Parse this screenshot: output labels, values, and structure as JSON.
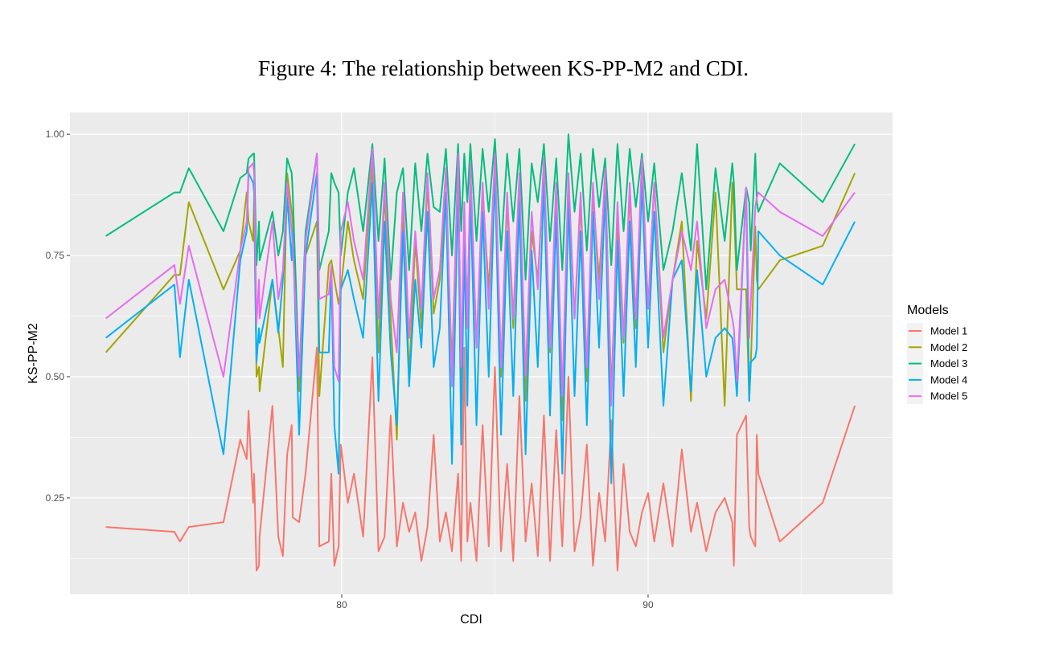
{
  "chart_data": {
    "type": "line",
    "title": "Figure 4: The relationship between KS-PP-M2 and CDI.",
    "xlabel": "CDI",
    "ylabel": "KS-PP-M2",
    "xlim": [
      71.13,
      97.98
    ],
    "ylim": [
      0.051,
      1.045
    ],
    "xticks": [
      80,
      90
    ],
    "xtick_labels": [
      "80",
      "90"
    ],
    "xminor": [
      75,
      85,
      95
    ],
    "yticks": [
      0.25,
      0.5,
      0.75,
      1.0
    ],
    "ytick_labels": [
      "0.25",
      "0.50",
      "0.75",
      "1.00"
    ],
    "yminor": [
      0.125,
      0.375,
      0.625,
      0.875
    ],
    "grid": true,
    "legend": {
      "title": "Models",
      "placement": "right"
    },
    "x": [
      72.3,
      74.54,
      74.72,
      75.01,
      76.14,
      76.69,
      76.9,
      76.96,
      77.11,
      77.14,
      77.22,
      77.3,
      77.32,
      77.74,
      77.93,
      78.08,
      78.22,
      78.37,
      78.4,
      78.61,
      78.82,
      79.19,
      79.27,
      79.58,
      79.66,
      79.76,
      79.9,
      79.97,
      80.2,
      80.4,
      80.7,
      81.0,
      81.2,
      81.4,
      81.6,
      81.8,
      82.0,
      82.2,
      82.4,
      82.6,
      82.8,
      83.0,
      83.2,
      83.4,
      83.6,
      83.8,
      83.9,
      84.0,
      84.1,
      84.2,
      84.4,
      84.6,
      84.8,
      85.0,
      85.2,
      85.4,
      85.6,
      85.8,
      86.0,
      86.2,
      86.4,
      86.6,
      86.8,
      87.0,
      87.2,
      87.4,
      87.6,
      87.8,
      88.0,
      88.2,
      88.4,
      88.6,
      88.8,
      89.0,
      89.2,
      89.4,
      89.6,
      89.8,
      90.0,
      90.2,
      90.5,
      90.8,
      91.1,
      91.4,
      91.6,
      91.9,
      92.2,
      92.5,
      92.75,
      92.8,
      92.9,
      93.2,
      93.3,
      93.35,
      93.5,
      93.55,
      93.6,
      94.3,
      95.7,
      96.75
    ],
    "series": [
      {
        "name": "Model 1",
        "color": "#F8766D",
        "values": [
          0.19,
          0.18,
          0.16,
          0.19,
          0.2,
          0.37,
          0.33,
          0.43,
          0.24,
          0.3,
          0.1,
          0.11,
          0.17,
          0.44,
          0.17,
          0.13,
          0.34,
          0.4,
          0.21,
          0.2,
          0.3,
          0.56,
          0.15,
          0.16,
          0.3,
          0.11,
          0.15,
          0.36,
          0.24,
          0.3,
          0.17,
          0.54,
          0.14,
          0.17,
          0.42,
          0.15,
          0.24,
          0.18,
          0.22,
          0.12,
          0.19,
          0.38,
          0.16,
          0.22,
          0.14,
          0.3,
          0.12,
          0.56,
          0.16,
          0.24,
          0.12,
          0.4,
          0.15,
          0.52,
          0.14,
          0.32,
          0.12,
          0.46,
          0.16,
          0.28,
          0.13,
          0.42,
          0.12,
          0.39,
          0.15,
          0.5,
          0.14,
          0.21,
          0.36,
          0.11,
          0.26,
          0.16,
          0.41,
          0.1,
          0.32,
          0.18,
          0.15,
          0.22,
          0.26,
          0.16,
          0.28,
          0.15,
          0.35,
          0.18,
          0.24,
          0.14,
          0.22,
          0.25,
          0.2,
          0.11,
          0.38,
          0.42,
          0.19,
          0.17,
          0.15,
          0.38,
          0.3,
          0.16,
          0.24,
          0.44
        ]
      },
      {
        "name": "Model 2",
        "color": "#A3A500",
        "values": [
          0.55,
          0.71,
          0.71,
          0.86,
          0.68,
          0.76,
          0.88,
          0.82,
          0.78,
          0.87,
          0.5,
          0.52,
          0.47,
          0.7,
          0.6,
          0.52,
          0.92,
          0.84,
          0.82,
          0.47,
          0.75,
          0.82,
          0.46,
          0.73,
          0.74,
          0.7,
          0.65,
          0.68,
          0.82,
          0.74,
          0.66,
          0.94,
          0.55,
          0.88,
          0.62,
          0.37,
          0.86,
          0.5,
          0.78,
          0.6,
          0.9,
          0.63,
          0.7,
          0.88,
          0.52,
          0.94,
          0.48,
          0.84,
          0.62,
          0.92,
          0.56,
          0.88,
          0.68,
          0.95,
          0.5,
          0.86,
          0.6,
          0.9,
          0.45,
          0.8,
          0.7,
          0.93,
          0.55,
          0.88,
          0.41,
          0.9,
          0.62,
          0.86,
          0.49,
          0.88,
          0.7,
          0.91,
          0.47,
          0.82,
          0.57,
          0.88,
          0.6,
          0.95,
          0.64,
          0.9,
          0.55,
          0.7,
          0.82,
          0.45,
          0.78,
          0.62,
          0.88,
          0.44,
          0.9,
          0.85,
          0.68,
          0.68,
          0.45,
          0.52,
          0.81,
          0.7,
          0.68,
          0.74,
          0.77,
          0.92
        ]
      },
      {
        "name": "Model 3",
        "color": "#00BF7D",
        "values": [
          0.79,
          0.88,
          0.88,
          0.93,
          0.8,
          0.91,
          0.92,
          0.95,
          0.96,
          0.96,
          0.73,
          0.82,
          0.74,
          0.84,
          0.75,
          0.8,
          0.95,
          0.92,
          0.88,
          0.5,
          0.8,
          0.96,
          0.72,
          0.8,
          0.92,
          0.9,
          0.88,
          0.75,
          0.88,
          0.93,
          0.8,
          0.98,
          0.78,
          0.95,
          0.7,
          0.88,
          0.93,
          0.72,
          0.94,
          0.8,
          0.96,
          0.85,
          0.84,
          0.97,
          0.75,
          0.98,
          0.8,
          0.96,
          0.86,
          0.98,
          0.78,
          0.97,
          0.84,
          0.99,
          0.76,
          0.96,
          0.82,
          0.97,
          0.7,
          0.94,
          0.86,
          0.98,
          0.78,
          0.95,
          0.72,
          1.0,
          0.84,
          0.96,
          0.76,
          0.97,
          0.85,
          0.95,
          0.73,
          0.98,
          0.8,
          0.97,
          0.85,
          0.96,
          0.82,
          0.94,
          0.72,
          0.8,
          0.92,
          0.76,
          0.98,
          0.68,
          0.93,
          0.78,
          0.94,
          0.9,
          0.72,
          0.89,
          0.86,
          0.76,
          0.96,
          0.86,
          0.84,
          0.94,
          0.86,
          0.98
        ]
      },
      {
        "name": "Model 4",
        "color": "#00B0F6",
        "values": [
          0.58,
          0.69,
          0.54,
          0.7,
          0.34,
          0.74,
          0.8,
          0.92,
          0.9,
          0.88,
          0.53,
          0.6,
          0.57,
          0.7,
          0.59,
          0.7,
          0.87,
          0.74,
          0.8,
          0.38,
          0.75,
          0.92,
          0.55,
          0.55,
          0.72,
          0.4,
          0.3,
          0.68,
          0.72,
          0.66,
          0.58,
          0.9,
          0.45,
          0.82,
          0.55,
          0.4,
          0.8,
          0.48,
          0.7,
          0.56,
          0.84,
          0.52,
          0.6,
          0.88,
          0.32,
          0.9,
          0.36,
          0.78,
          0.44,
          0.88,
          0.4,
          0.84,
          0.5,
          0.92,
          0.38,
          0.8,
          0.46,
          0.86,
          0.34,
          0.76,
          0.52,
          0.9,
          0.42,
          0.84,
          0.3,
          0.86,
          0.46,
          0.8,
          0.4,
          0.84,
          0.56,
          0.88,
          0.28,
          0.78,
          0.46,
          0.82,
          0.52,
          0.9,
          0.56,
          0.84,
          0.44,
          0.7,
          0.74,
          0.47,
          0.72,
          0.5,
          0.58,
          0.6,
          0.58,
          0.55,
          0.46,
          0.89,
          0.45,
          0.53,
          0.54,
          0.56,
          0.8,
          0.75,
          0.69,
          0.82
        ]
      },
      {
        "name": "Model 5",
        "color": "#E76BF3",
        "values": [
          0.62,
          0.73,
          0.65,
          0.77,
          0.5,
          0.76,
          0.82,
          0.93,
          0.94,
          0.92,
          0.61,
          0.7,
          0.62,
          0.82,
          0.66,
          0.72,
          0.9,
          0.8,
          0.77,
          0.5,
          0.78,
          0.96,
          0.66,
          0.67,
          0.73,
          0.52,
          0.49,
          0.8,
          0.86,
          0.78,
          0.7,
          0.97,
          0.62,
          0.9,
          0.66,
          0.55,
          0.88,
          0.58,
          0.8,
          0.64,
          0.92,
          0.66,
          0.72,
          0.93,
          0.48,
          0.96,
          0.52,
          0.86,
          0.6,
          0.94,
          0.56,
          0.9,
          0.64,
          0.96,
          0.52,
          0.88,
          0.62,
          0.92,
          0.5,
          0.84,
          0.68,
          0.95,
          0.56,
          0.9,
          0.46,
          0.92,
          0.62,
          0.88,
          0.52,
          0.9,
          0.66,
          0.93,
          0.44,
          0.86,
          0.58,
          0.9,
          0.62,
          0.95,
          0.64,
          0.9,
          0.58,
          0.7,
          0.8,
          0.72,
          0.82,
          0.6,
          0.68,
          0.7,
          0.62,
          0.6,
          0.49,
          0.89,
          0.58,
          0.65,
          0.85,
          0.87,
          0.88,
          0.84,
          0.79,
          0.88
        ]
      }
    ]
  }
}
